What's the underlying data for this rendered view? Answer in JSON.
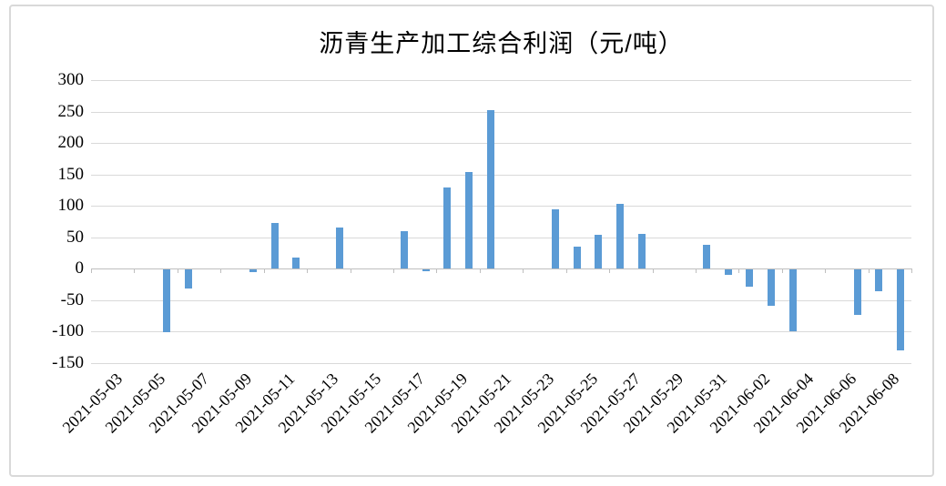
{
  "chart": {
    "colors": {
      "bar": "#5B9BD5",
      "gridline": "#D9D9D9",
      "axis": "#BFBFBF",
      "frame": "#D9D9D9",
      "text": "#000000"
    }
  },
  "chart_data": {
    "type": "bar",
    "title": "沥青生产加工综合利润（元/吨）",
    "xlabel": "",
    "ylabel": "",
    "ylim": [
      -150,
      300
    ],
    "y_ticks": [
      300,
      250,
      200,
      150,
      100,
      50,
      0,
      -50,
      -100,
      -150
    ],
    "grid": true,
    "legend": false,
    "x": [
      "2021-05-03",
      "2021-05-04",
      "2021-05-05",
      "2021-05-06",
      "2021-05-07",
      "2021-05-08",
      "2021-05-09",
      "2021-05-10",
      "2021-05-11",
      "2021-05-12",
      "2021-05-13",
      "2021-05-14",
      "2021-05-15",
      "2021-05-16",
      "2021-05-17",
      "2021-05-18",
      "2021-05-19",
      "2021-05-20",
      "2021-05-21",
      "2021-05-22",
      "2021-05-23",
      "2021-05-24",
      "2021-05-25",
      "2021-05-26",
      "2021-05-27",
      "2021-05-28",
      "2021-05-29",
      "2021-05-30",
      "2021-05-31",
      "2021-06-01",
      "2021-06-02",
      "2021-06-03",
      "2021-06-04",
      "2021-06-05",
      "2021-06-06",
      "2021-06-07",
      "2021-06-08",
      "2021-06-09"
    ],
    "values": [
      null,
      null,
      null,
      -100,
      -30,
      null,
      null,
      -4,
      73,
      18,
      null,
      65,
      null,
      null,
      60,
      -3,
      130,
      154,
      253,
      null,
      null,
      95,
      35,
      54,
      104,
      56,
      null,
      null,
      38,
      -8,
      -27,
      -58,
      -98,
      null,
      null,
      -72,
      -35,
      -129
    ],
    "x_tick_labels": [
      "2021-05-03",
      "2021-05-05",
      "2021-05-07",
      "2021-05-09",
      "2021-05-11",
      "2021-05-13",
      "2021-05-15",
      "2021-05-17",
      "2021-05-19",
      "2021-05-21",
      "2021-05-23",
      "2021-05-25",
      "2021-05-27",
      "2021-05-29",
      "2021-05-31",
      "2021-06-02",
      "2021-06-04",
      "2021-06-06",
      "2021-06-08"
    ]
  }
}
